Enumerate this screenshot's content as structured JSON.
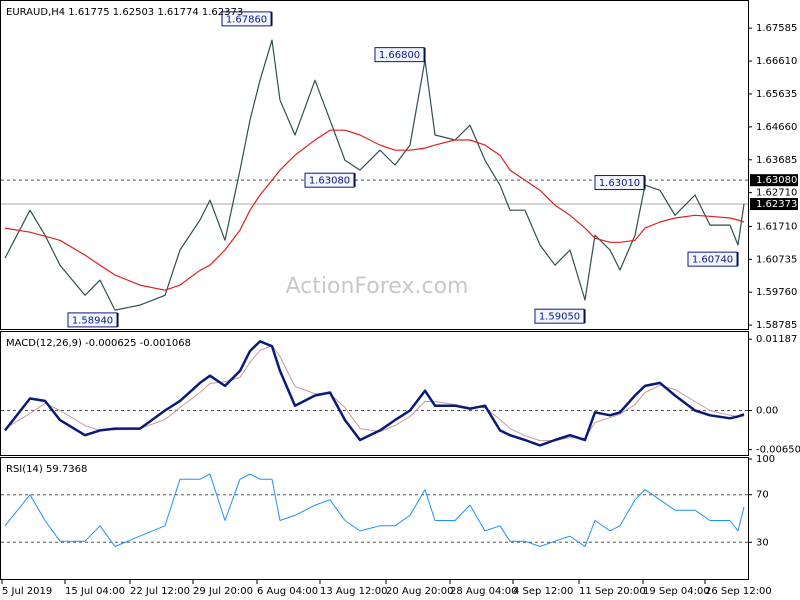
{
  "chart_data": [
    {
      "type": "line",
      "title": "EURAUD,H4  1.61775 1.62503 1.61774 1.62373",
      "watermark": "ActionForex.com",
      "x": [
        5,
        30,
        45,
        60,
        85,
        100,
        115,
        140,
        165,
        180,
        200,
        210,
        225,
        240,
        250,
        260,
        272,
        280,
        295,
        315,
        330,
        345,
        360,
        380,
        395,
        410,
        425,
        435,
        455,
        470,
        485,
        500,
        510,
        525,
        540,
        555,
        570,
        585,
        595,
        610,
        620,
        635,
        645,
        660,
        675,
        695,
        710,
        730,
        738,
        744
      ],
      "xlim": [
        0,
        748
      ],
      "ylim": [
        1.587,
        1.6836
      ],
      "yticks": [
        1.67585,
        {
          "value": 1.6661,
          "label": "1.66610"
        },
        1.65635,
        {
          "value": 1.6466,
          "label": "1.64660"
        },
        1.63685,
        {
          "value": 1.6271,
          "label": "1.62710"
        },
        {
          "value": 1.6171,
          "label": "1.61710"
        },
        1.60735,
        {
          "value": 1.5976,
          "label": "1.59760"
        },
        1.58785
      ],
      "series": [
        {
          "color": "#2f4f4f",
          "values": [
            1.6077,
            1.6219,
            1.6145,
            1.6056,
            1.5967,
            1.6012,
            1.5923,
            1.5938,
            1.5967,
            1.6101,
            1.619,
            1.6249,
            1.613,
            1.6338,
            1.6486,
            1.6604,
            1.6723,
            1.6545,
            1.6442,
            1.6604,
            1.6486,
            1.6367,
            1.6338,
            1.6397,
            1.6353,
            1.6412,
            1.6664,
            1.6442,
            1.6427,
            1.6471,
            1.6367,
            1.6293,
            1.6219,
            1.6219,
            1.6116,
            1.6056,
            1.6101,
            1.5953,
            1.6145,
            1.6101,
            1.6042,
            1.6145,
            1.6293,
            1.6278,
            1.6204,
            1.6264,
            1.6175,
            1.6175,
            1.6116,
            1.62373
          ]
        },
        {
          "color": "#e02020",
          "values": [
            1.6166,
            1.6154,
            1.6142,
            1.613,
            1.6086,
            1.6056,
            1.6027,
            1.5997,
            1.5982,
            1.5997,
            1.6041,
            1.6056,
            1.6101,
            1.616,
            1.6219,
            1.6264,
            1.6308,
            1.6338,
            1.6382,
            1.6427,
            1.6456,
            1.6456,
            1.6442,
            1.6412,
            1.6397,
            1.6397,
            1.6403,
            1.6412,
            1.6427,
            1.6427,
            1.6412,
            1.6382,
            1.6338,
            1.6308,
            1.6278,
            1.6234,
            1.6204,
            1.6166,
            1.6136,
            1.6124,
            1.6124,
            1.613,
            1.6166,
            1.6184,
            1.6196,
            1.6204,
            1.6201,
            1.6196,
            1.619,
            1.6184
          ]
        }
      ],
      "levels": [
        {
          "value": 1.6308,
          "label": "1.63080"
        }
      ],
      "last": {
        "value": 1.62373,
        "label": "1.62373"
      },
      "annotations": [
        {
          "x": 272,
          "value": 1.6786,
          "label": "1.67860"
        },
        {
          "x": 425,
          "value": 1.668,
          "label": "1.66800"
        },
        {
          "x": 355,
          "value": 1.6308,
          "label": "1.63080"
        },
        {
          "x": 645,
          "value": 1.6301,
          "label": "1.63010"
        },
        {
          "x": 738,
          "value": 1.6074,
          "label": "1.60740"
        },
        {
          "x": 118,
          "value": 1.5894,
          "label": "1.58940"
        },
        {
          "x": 585,
          "value": 1.5905,
          "label": "1.59050"
        }
      ]
    },
    {
      "type": "line",
      "title": "MACD(12,26,9) -0.000625 -0.001068",
      "x": [
        5,
        30,
        45,
        60,
        85,
        100,
        115,
        140,
        165,
        180,
        200,
        210,
        225,
        240,
        250,
        260,
        272,
        280,
        295,
        315,
        330,
        345,
        360,
        380,
        395,
        410,
        425,
        435,
        455,
        470,
        485,
        500,
        510,
        525,
        540,
        555,
        570,
        585,
        595,
        610,
        620,
        635,
        645,
        660,
        675,
        695,
        710,
        730,
        738,
        744
      ],
      "xlim": [
        0,
        748
      ],
      "ylim": [
        -0.0074,
        0.0129
      ],
      "yticks": [
        0.01187,
        {
          "value": 0,
          "label": "0.00"
        },
        -0.006502
      ],
      "levels": [
        0
      ],
      "series": [
        {
          "color": "#c89a9a",
          "width": 1,
          "values": [
            -0.003,
            -0.0005,
            0.0012,
            0,
            -0.0025,
            -0.0033,
            -0.0032,
            -0.003,
            -0.0015,
            0.0005,
            0.003,
            0.0045,
            0.0048,
            0.0055,
            0.008,
            0.01,
            0.0108,
            0.009,
            0.004,
            0.0028,
            0.0028,
            0.0005,
            -0.003,
            -0.0035,
            -0.0025,
            -0.001,
            0.0015,
            0.0015,
            0.001,
            0.0005,
            0.0005,
            -0.0015,
            -0.003,
            -0.0042,
            -0.005,
            -0.005,
            -0.0045,
            -0.0046,
            -0.002,
            -0.0012,
            -0.0006,
            0.001,
            0.003,
            0.0042,
            0.0035,
            0.0015,
            0,
            -0.0008,
            -0.001,
            -0.001068
          ]
        },
        {
          "color": "#0a1a7a",
          "width": 2.5,
          "values": [
            -0.0033,
            0.002,
            0.0016,
            -0.0016,
            -0.0041,
            -0.0033,
            -0.003,
            -0.003,
            0,
            0.0016,
            0.0046,
            0.0058,
            0.0041,
            0.0066,
            0.0099,
            0.0115,
            0.0107,
            0.0066,
            0.0008,
            0.0025,
            0.003,
            -0.0016,
            -0.0049,
            -0.0033,
            -0.0016,
            0,
            0.0033,
            0.0008,
            0.0008,
            0.0003,
            0.0008,
            -0.0033,
            -0.0041,
            -0.0049,
            -0.0058,
            -0.0049,
            -0.0041,
            -0.0049,
            -0.0003,
            -0.0008,
            -0.0003,
            0.0025,
            0.0041,
            0.0046,
            0.0025,
            0,
            -0.0008,
            -0.0013,
            -0.001,
            -0.000625
          ]
        }
      ]
    },
    {
      "type": "line",
      "title": "RSI(14) 59.7368",
      "x": [
        5,
        30,
        45,
        60,
        85,
        100,
        115,
        140,
        165,
        180,
        200,
        210,
        225,
        240,
        250,
        260,
        272,
        280,
        295,
        315,
        330,
        345,
        360,
        380,
        395,
        410,
        425,
        435,
        455,
        470,
        485,
        500,
        510,
        525,
        540,
        555,
        570,
        585,
        595,
        610,
        620,
        635,
        645,
        660,
        675,
        695,
        710,
        730,
        738,
        744
      ],
      "xlim": [
        0,
        748
      ],
      "ylim": [
        0,
        100
      ],
      "yticks": [
        100,
        70,
        30
      ],
      "levels": [
        70,
        30
      ],
      "xticks": [
        {
          "value": 2,
          "label": "5 Jul 2019"
        },
        {
          "value": 65,
          "label": "15 Jul 04:00"
        },
        {
          "value": 130,
          "label": "22 Jul 12:00"
        },
        {
          "value": 193,
          "label": "29 Jul 20:00"
        },
        {
          "value": 257,
          "label": "6 Aug 04:00"
        },
        {
          "value": 320,
          "label": "13 Aug 12:00"
        },
        {
          "value": 386,
          "label": "20 Aug 20:00"
        },
        {
          "value": 450,
          "label": "28 Aug 04:00"
        },
        {
          "value": 513,
          "label": "4 Sep 12:00"
        },
        {
          "value": 579,
          "label": "11 Sep 20:00"
        },
        {
          "value": 643,
          "label": "19 Sep 04:00"
        },
        {
          "value": 705,
          "label": "26 Sep 12:00"
        }
      ],
      "series": [
        {
          "color": "#1e90ff",
          "width": 1,
          "values": [
            43.9,
            70,
            48.3,
            30.9,
            30.9,
            43.9,
            26.5,
            35.2,
            43.9,
            83,
            83,
            87.4,
            48.3,
            83,
            87.4,
            83,
            83,
            48.3,
            52.6,
            61.3,
            65.7,
            48.3,
            39.6,
            43.9,
            43.9,
            52.6,
            74.3,
            48.3,
            48.3,
            61.3,
            39.6,
            43.9,
            30.9,
            30.9,
            26.5,
            30.9,
            35.2,
            26.5,
            48.3,
            39.6,
            43.9,
            65.7,
            74.3,
            65.7,
            57,
            57,
            48.3,
            48.3,
            39.6,
            59.7368
          ]
        }
      ]
    }
  ]
}
